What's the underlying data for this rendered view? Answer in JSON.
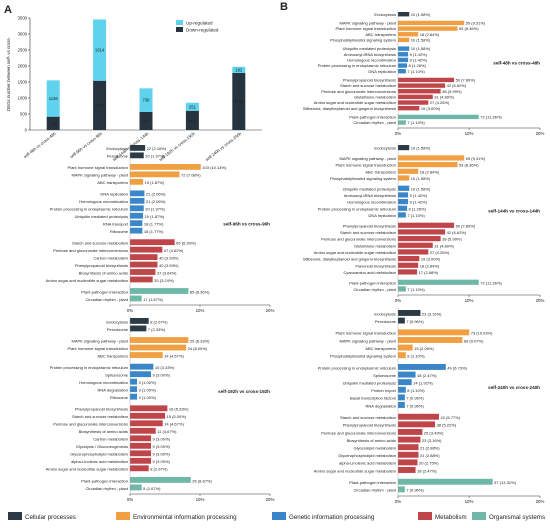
{
  "figure": {
    "colors": {
      "cellular": "#2b3a45",
      "environmental": "#f0a042",
      "genetic": "#3a86c8",
      "metabolism": "#c0454a",
      "organismal": "#6fb8a8",
      "up": "#5fd3ee",
      "down": "#26343f"
    },
    "legend": {
      "items": [
        {
          "key": "cellular",
          "label": "Cellular processes"
        },
        {
          "key": "environmental",
          "label": "Environmental information processing"
        },
        {
          "key": "genetic",
          "label": "Genetic information processing"
        },
        {
          "key": "metabolism",
          "label": "Metabolism"
        },
        {
          "key": "organismal",
          "label": "Organismal systems"
        }
      ]
    }
  },
  "chart_data": [
    {
      "panel": "A",
      "type": "bar",
      "stacked": true,
      "ylabel": "DEGs number between self- vs cross-",
      "ylim": [
        0,
        3500
      ],
      "yticks": [
        0,
        500,
        1000,
        1500,
        2000,
        2500,
        3000,
        3500
      ],
      "legend": [
        "Up-regulated",
        "Down-regulated"
      ],
      "legend_position": "top-right",
      "categories": [
        "self-48h vs cross-48h",
        "self-96h vs cross-96h",
        "self-144h vs cross-144h",
        "self-192h vs cross-192h",
        "self-240h vs cross-240h"
      ],
      "series": [
        {
          "name": "Down-regulated",
          "values": [
            416,
            1540,
            564,
            601,
            1783
          ]
        },
        {
          "name": "Up-regulated",
          "values": [
            1136,
            1914,
            738,
            251,
            192
          ]
        }
      ]
    },
    {
      "panel": "B",
      "type": "bar",
      "orientation": "horizontal",
      "title": "self-48h vs cross-48h",
      "xticks": [
        "0%",
        "10%",
        "20%"
      ],
      "xmax": 20,
      "groups": [
        {
          "cat": "cellular",
          "items": [
            {
              "label": "Endocytosis",
              "value": 10,
              "text": "10 (1.58%)"
            }
          ]
        },
        {
          "cat": "environmental",
          "items": [
            {
              "label": "MAPK signaling pathway - plant",
              "value": 59,
              "text": "59 (9.31%)"
            },
            {
              "label": "Plant hormone signal transduction",
              "value": 53,
              "text": "53 (8.36%)"
            },
            {
              "label": "ABC transporters",
              "value": 18,
              "text": "18 (2.84%)"
            },
            {
              "label": "Phosphatidylinositol signaling system",
              "value": 10,
              "text": "10 (1.58%)"
            }
          ]
        },
        {
          "cat": "genetic",
          "items": [
            {
              "label": "Ubiquitin mediated proteolysis",
              "value": 10,
              "text": "10 (1.58%)"
            },
            {
              "label": "Aminoacyl-tRNA biosynthesis",
              "value": 9,
              "text": "9 (1.42%)"
            },
            {
              "label": "Homologous recombination",
              "value": 9,
              "text": "9 (1.42%)"
            },
            {
              "label": "Protein processing in endoplasmic reticulum",
              "value": 8,
              "text": "8 (1.26%)"
            },
            {
              "label": "DNA replication",
              "value": 7,
              "text": "7 (1.10%)"
            }
          ]
        },
        {
          "cat": "metabolism",
          "items": [
            {
              "label": "Phenylpropanoid biosynthesis",
              "value": 50,
              "text": "50 (7.89%)"
            },
            {
              "label": "Starch and sucrose metabolism",
              "value": 42,
              "text": "42 (6.62%)"
            },
            {
              "label": "Pentose and glucuronate interconversions",
              "value": 38,
              "text": "38 (5.99%)"
            },
            {
              "label": "Glutathione metabolism",
              "value": 31,
              "text": "31 (4.89%)"
            },
            {
              "label": "Amino sugar and nucleotide sugar metabolism",
              "value": 27,
              "text": "27 (4.26%)"
            },
            {
              "label": "Stilbenoid, diarylheptanoid and gingerol biosynthesis",
              "value": 19,
              "text": "19 (3.00%)"
            }
          ]
        },
        {
          "cat": "organismal",
          "items": [
            {
              "label": "Plant-pathogen interaction",
              "value": 72,
              "text": "72 (11.36%)"
            },
            {
              "label": "Circadian rhythm - plant",
              "value": 7,
              "text": "7 (1.10%)"
            }
          ]
        }
      ]
    },
    {
      "panel": "C",
      "type": "bar",
      "orientation": "horizontal",
      "title": "self-96h vs cross-96h",
      "xticks": [
        "0%",
        "10%",
        "20%"
      ],
      "xmax": 20,
      "groups": [
        {
          "cat": "cellular",
          "items": [
            {
              "label": "Endocytosis",
              "value": 22,
              "text": "22 (2.16%)"
            },
            {
              "label": "Peroxisome",
              "value": 20,
              "text": "20 (1.97%)"
            }
          ]
        },
        {
          "cat": "environmental",
          "items": [
            {
              "label": "Plant hormone signal transduction",
              "value": 103,
              "text": "103 (10.13%)"
            },
            {
              "label": "MAPK signaling pathway - plant",
              "value": 72,
              "text": "72 (7.08%)"
            },
            {
              "label": "ABC transporters",
              "value": 19,
              "text": "19 (1.87%)"
            }
          ]
        },
        {
          "cat": "genetic",
          "items": [
            {
              "label": "DNA replication",
              "value": 21,
              "text": "21 (2.06%)"
            },
            {
              "label": "Homologous recombination",
              "value": 21,
              "text": "21 (2.06%)"
            },
            {
              "label": "Protein processing in endoplasmic reticulum",
              "value": 20,
              "text": "20 (1.97%)"
            },
            {
              "label": "Ubiquitin mediated proteolysis",
              "value": 19,
              "text": "19 (1.87%)"
            },
            {
              "label": "RNA transport",
              "value": 18,
              "text": "18 (1.77%)"
            },
            {
              "label": "Ribosome",
              "value": 18,
              "text": "18 (1.77%)"
            }
          ]
        },
        {
          "cat": "metabolism",
          "items": [
            {
              "label": "Starch and sucrose metabolism",
              "value": 65,
              "text": "65 (6.39%)"
            },
            {
              "label": "Pentose and glucuronate interconversions",
              "value": 47,
              "text": "47 (4.62%)"
            },
            {
              "label": "Carbon metabolism",
              "value": 40,
              "text": "40 (3.93%)"
            },
            {
              "label": "Phenylpropanoid biosynthesis",
              "value": 40,
              "text": "40 (3.93%)"
            },
            {
              "label": "Biosynthesis of amino acids",
              "value": 37,
              "text": "37 (3.64%)"
            },
            {
              "label": "Amino sugar and nucleotide sugar metabolism",
              "value": 33,
              "text": "33 (3.24%)"
            }
          ]
        },
        {
          "cat": "organismal",
          "items": [
            {
              "label": "Plant-pathogen interaction",
              "value": 85,
              "text": "85 (8.36%)"
            },
            {
              "label": "Circadian rhythm - plant",
              "value": 17,
              "text": "17 (1.67%)"
            }
          ]
        }
      ]
    },
    {
      "panel": "D",
      "type": "bar",
      "orientation": "horizontal",
      "title": "self-144h vs cross-144h",
      "xticks": [
        "0%",
        "10%",
        "20%"
      ],
      "xmax": 20,
      "groups": [
        {
          "cat": "cellular",
          "items": [
            {
              "label": "Endocytosis",
              "value": 10,
              "text": "10 (1.58%)"
            }
          ]
        },
        {
          "cat": "environmental",
          "items": [
            {
              "label": "MAPK signaling pathway - plant",
              "value": 59,
              "text": "59 (9.31%)"
            },
            {
              "label": "Plant hormone signal transduction",
              "value": 53,
              "text": "53 (8.36%)"
            },
            {
              "label": "ABC transporters",
              "value": 18,
              "text": "18 (2.84%)"
            },
            {
              "label": "Phosphatidylinositol signaling system",
              "value": 10,
              "text": "10 (1.58%)"
            }
          ]
        },
        {
          "cat": "genetic",
          "items": [
            {
              "label": "Ubiquitin mediated proteolysis",
              "value": 10,
              "text": "10 (1.58%)"
            },
            {
              "label": "Aminoacyl-tRNA biosynthesis",
              "value": 9,
              "text": "9 (1.42%)"
            },
            {
              "label": "Homologous recombination",
              "value": 9,
              "text": "9 (1.42%)"
            },
            {
              "label": "Protein processing in endoplasmic reticulum",
              "value": 8,
              "text": "8 (1.26%)"
            },
            {
              "label": "DNA replication",
              "value": 7,
              "text": "7 (1.10%)"
            }
          ]
        },
        {
          "cat": "metabolism",
          "items": [
            {
              "label": "Phenylpropanoid biosynthesis",
              "value": 50,
              "text": "50 (7.89%)"
            },
            {
              "label": "Starch and sucrose metabolism",
              "value": 42,
              "text": "42 (6.62%)"
            },
            {
              "label": "Pentose and glucuronate interconversions",
              "value": 38,
              "text": "38 (5.99%)"
            },
            {
              "label": "Glutathione metabolism",
              "value": 31,
              "text": "31 (4.89%)"
            },
            {
              "label": "Amino sugar and nucleotide sugar metabolism",
              "value": 27,
              "text": "27 (4.26%)"
            },
            {
              "label": "Stilbenoid, diarylheptanoid and gingerol biosynthesis",
              "value": 19,
              "text": "19 (3.00%)"
            },
            {
              "label": "Flavonoid biosynthesis",
              "value": 18,
              "text": "18 (2.84%)"
            },
            {
              "label": "Cyanoamino acid metabolism",
              "value": 17,
              "text": "17 (2.68%)"
            }
          ]
        },
        {
          "cat": "organismal",
          "items": [
            {
              "label": "Plant-pathogen interaction",
              "value": 72,
              "text": "72 (11.36%)"
            },
            {
              "label": "Circadian rhythm - plant",
              "value": 7,
              "text": "7 (1.10%)"
            }
          ]
        }
      ]
    },
    {
      "panel": "E",
      "type": "bar",
      "orientation": "horizontal",
      "title": "self-192h vs cross-192h",
      "xticks": [
        "0%",
        "10%",
        "20%"
      ],
      "xmax": 20,
      "groups": [
        {
          "cat": "cellular",
          "items": [
            {
              "label": "Endocytosis",
              "value": 8,
              "text": "8 (2.67%)"
            },
            {
              "label": "Peroxisome",
              "value": 7,
              "text": "7 (2.33%)"
            }
          ]
        },
        {
          "cat": "environmental",
          "items": [
            {
              "label": "MAPK signaling pathway - plant",
              "value": 25,
              "text": "25 (8.33%)"
            },
            {
              "label": "Plant hormone signal transduction",
              "value": 24,
              "text": "24 (8.00%)"
            },
            {
              "label": "ABC transporters",
              "value": 14,
              "text": "14 (4.67%)"
            }
          ]
        },
        {
          "cat": "genetic",
          "items": [
            {
              "label": "Protein processing in endoplasmic reticulum",
              "value": 10,
              "text": "10 (3.33%)"
            },
            {
              "label": "Spliceosome",
              "value": 9,
              "text": "9 (3.00%)"
            },
            {
              "label": "Homologous recombination",
              "value": 3,
              "text": "3 (1.00%)"
            },
            {
              "label": "RNA degradation",
              "value": 3,
              "text": "3 (1.00%)"
            },
            {
              "label": "Ribosome",
              "value": 3,
              "text": "3 (1.00%)"
            }
          ]
        },
        {
          "cat": "metabolism",
          "items": [
            {
              "label": "Phenylpropanoid biosynthesis",
              "value": 16,
              "text": "16 (5.33%)"
            },
            {
              "label": "Starch and sucrose metabolism",
              "value": 15,
              "text": "15 (5.00%)"
            },
            {
              "label": "Pentose and glucuronate interconversions",
              "value": 14,
              "text": "14 (4.67%)"
            },
            {
              "label": "Biosynthesis of amino acids",
              "value": 11,
              "text": "11 (3.67%)"
            },
            {
              "label": "Carbon metabolism",
              "value": 9,
              "text": "9 (3.00%)"
            },
            {
              "label": "Glycolysis / Gluconeogenesis",
              "value": 9,
              "text": "9 (3.00%)"
            },
            {
              "label": "Glycerophospholipid metabolism",
              "value": 9,
              "text": "9 (3.00%)"
            },
            {
              "label": "alpha-Linolenic acid metabolism",
              "value": 9,
              "text": "9 (3.00%)"
            },
            {
              "label": "Amino sugar and nucleotide sugar metabolism",
              "value": 8,
              "text": "8 (2.67%)"
            }
          ]
        },
        {
          "cat": "organismal",
          "items": [
            {
              "label": "Plant-pathogen interaction",
              "value": 26,
              "text": "26 (8.67%)"
            },
            {
              "label": "Circadian rhythm - plant",
              "value": 5,
              "text": "5 (1.67%)"
            }
          ]
        }
      ]
    },
    {
      "panel": "F",
      "type": "bar",
      "orientation": "horizontal",
      "title": "self-240h vs cross-240h",
      "xticks": [
        "0%",
        "10%",
        "20%"
      ],
      "xmax": 20,
      "groups": [
        {
          "cat": "cellular",
          "items": [
            {
              "label": "Endocytosis",
              "value": 23,
              "text": "23 (3.16%)"
            },
            {
              "label": "Peroxisome",
              "value": 7,
              "text": "7 (0.96%)"
            }
          ]
        },
        {
          "cat": "environmental",
          "items": [
            {
              "label": "Plant hormone signal transduction",
              "value": 73,
              "text": "73 (10.03%)"
            },
            {
              "label": "MAPK signaling pathway - plant",
              "value": 66,
              "text": "66 (9.07%)"
            },
            {
              "label": "ABC transporters",
              "value": 15,
              "text": "15 (2.06%)"
            },
            {
              "label": "Phosphatidylinositol signaling system",
              "value": 8,
              "text": "8 (1.10%)"
            }
          ]
        },
        {
          "cat": "genetic",
          "items": [
            {
              "label": "Protein processing in endoplasmic reticulum",
              "value": 49,
              "text": "49 (6.73%)"
            },
            {
              "label": "Spliceosome",
              "value": 18,
              "text": "18 (2.47%)"
            },
            {
              "label": "Ubiquitin mediated proteolysis",
              "value": 14,
              "text": "14 (1.92%)"
            },
            {
              "label": "Protein export",
              "value": 8,
              "text": "8 (1.10%)"
            },
            {
              "label": "Basal transcription factors",
              "value": 7,
              "text": "7 (0.96%)"
            },
            {
              "label": "RNA degradation",
              "value": 7,
              "text": "7 (0.96%)"
            }
          ]
        },
        {
          "cat": "metabolism",
          "items": [
            {
              "label": "Starch and sucrose metabolism",
              "value": 42,
              "text": "42 (5.77%)"
            },
            {
              "label": "Phenylpropanoid biosynthesis",
              "value": 38,
              "text": "38 (5.22%)"
            },
            {
              "label": "Pentose and glucuronate interconversions",
              "value": 25,
              "text": "25 (3.43%)"
            },
            {
              "label": "Biosynthesis of amino acids",
              "value": 23,
              "text": "23 (3.16%)"
            },
            {
              "label": "Glycerolipid metabolism",
              "value": 21,
              "text": "21 (2.88%)"
            },
            {
              "label": "Glycerophospholipid metabolism",
              "value": 21,
              "text": "21 (2.88%)"
            },
            {
              "label": "alpha-Linolenic acid metabolism",
              "value": 20,
              "text": "20 (2.75%)"
            },
            {
              "label": "Amino sugar and nucleotide sugar metabolism",
              "value": 18,
              "text": "18 (2.47%)"
            }
          ]
        },
        {
          "cat": "organismal",
          "items": [
            {
              "label": "Plant-pathogen interaction",
              "value": 97,
              "text": "97 (13.32%)"
            },
            {
              "label": "Circadian rhythm - plant",
              "value": 7,
              "text": "7 (0.96%)"
            }
          ]
        }
      ]
    }
  ]
}
